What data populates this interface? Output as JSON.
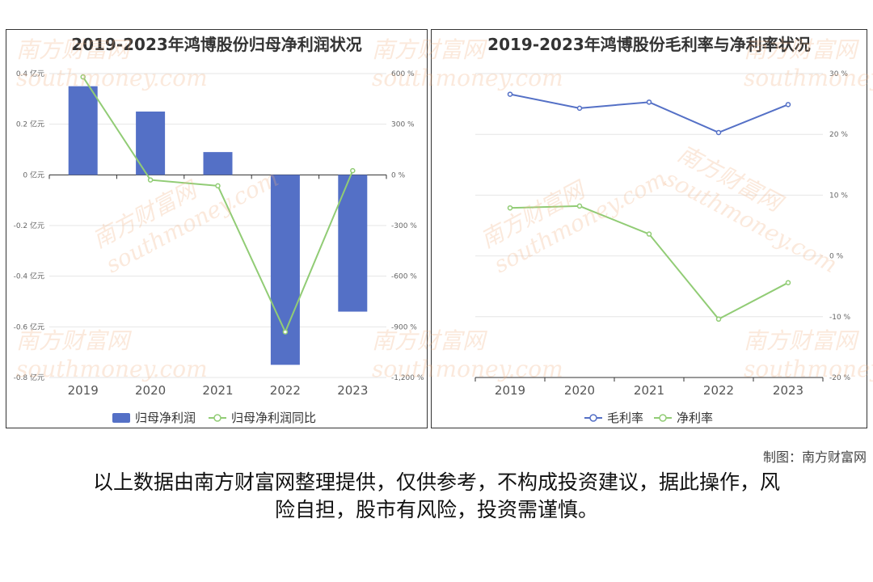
{
  "chart_data": [
    {
      "type": "bar",
      "title": "2019-2023年鸿博股份归母净利润状况",
      "categories": [
        "2019",
        "2020",
        "2021",
        "2022",
        "2023"
      ],
      "series": [
        {
          "name": "归母净利润",
          "type": "bar",
          "axis": "left",
          "values": [
            0.35,
            0.25,
            0.09,
            -0.75,
            -0.54
          ],
          "color": "#5470c6"
        },
        {
          "name": "归母净利润同比",
          "type": "line",
          "axis": "right",
          "values": [
            580,
            -30,
            -65,
            -930,
            25
          ],
          "color": "#91cc75"
        }
      ],
      "left_axis": {
        "min": -0.8,
        "max": 0.4,
        "ticks": [
          0.4,
          0.2,
          0,
          -0.2,
          -0.4,
          -0.6,
          -0.8
        ],
        "tick_labels": [
          "0.4 亿元",
          "0.2 亿元",
          "0 亿元",
          "-0.2 亿元",
          "-0.4 亿元",
          "-0.6 亿元",
          "-0.8 亿元"
        ]
      },
      "right_axis": {
        "min": -1200,
        "max": 600,
        "ticks": [
          600,
          300,
          0,
          -300,
          -600,
          -900,
          -1200
        ],
        "tick_labels": [
          "600 %",
          "300 %",
          "0 %",
          "-300 %",
          "-600 %",
          "-900 %",
          "-1,200 %"
        ]
      },
      "grid": true,
      "legend": "bottom"
    },
    {
      "type": "line",
      "title": "2019-2023年鸿博股份毛利率与净利率状况",
      "categories": [
        "2019",
        "2020",
        "2021",
        "2022",
        "2023"
      ],
      "series": [
        {
          "name": "毛利率",
          "values": [
            26.6,
            24.3,
            25.3,
            20.3,
            24.9
          ],
          "color": "#5470c6"
        },
        {
          "name": "净利率",
          "values": [
            7.9,
            8.2,
            3.6,
            -10.4,
            -4.4
          ],
          "color": "#91cc75"
        }
      ],
      "right_axis": {
        "min": -20,
        "max": 30,
        "ticks": [
          30,
          20,
          10,
          0,
          -10,
          -20
        ],
        "tick_labels": [
          "30 %",
          "20 %",
          "10 %",
          "0 %",
          "-10 %",
          "-20 %"
        ]
      },
      "grid": true,
      "legend": "bottom"
    }
  ],
  "footer": {
    "credit": "制图：南方财富网",
    "disclaimer_line1": "以上数据由南方财富网整理提供，仅供参考，不构成投资建议，据此操作，风",
    "disclaimer_line2": "险自担，股市有风险，投资需谨慎。"
  },
  "watermark": {
    "cn": "南方财富网",
    "en": "southmoney.com"
  }
}
